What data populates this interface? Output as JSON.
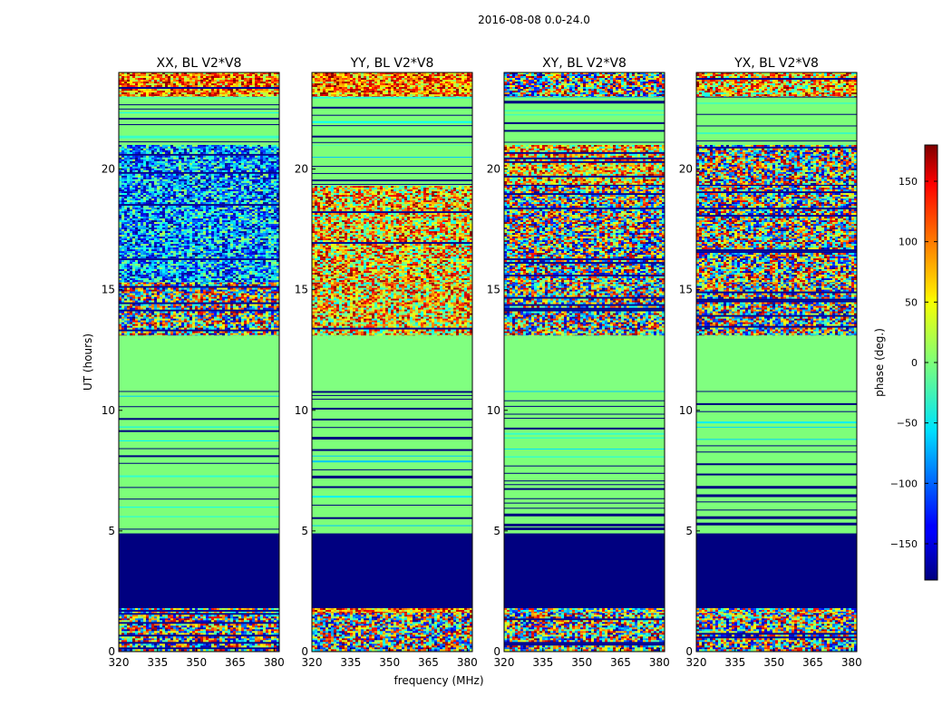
{
  "figure": {
    "suptitle": "2016-08-08 0.0-24.0"
  },
  "colorbar": {
    "label": "phase (deg.)",
    "ticks": [
      150,
      100,
      50,
      0,
      -50,
      -100,
      -150
    ],
    "tick_labels": [
      "150",
      "100",
      "50",
      "0",
      "−50",
      "−100",
      "−150"
    ],
    "range": [
      -180,
      180
    ],
    "colormap": "jet"
  },
  "chart_data": [
    {
      "type": "heatmap",
      "title": "XX, BL V2*V8",
      "xlabel": "",
      "ylabel": "UT (hours)",
      "xlim": [
        320,
        382
      ],
      "ylim": [
        0,
        24
      ],
      "xticks": [
        "320",
        "335",
        "350",
        "365",
        "380"
      ],
      "yticks": [
        "0",
        "5",
        "10",
        "15",
        "20"
      ],
      "bands": [
        {
          "hours": [
            0.0,
            1.6
          ],
          "pattern": "noise"
        },
        {
          "hours": [
            1.6,
            1.8
          ],
          "pattern": "mixed"
        },
        {
          "hours": [
            1.8,
            4.9
          ],
          "value_deg": -180
        },
        {
          "hours": [
            4.9,
            10.8
          ],
          "pattern": "striped-near-zero"
        },
        {
          "hours": [
            10.8,
            13.1
          ],
          "value_deg": 0
        },
        {
          "hours": [
            13.1,
            15.3
          ],
          "pattern": "noise"
        },
        {
          "hours": [
            15.3,
            19.3
          ],
          "pattern": "noise-negative"
        },
        {
          "hours": [
            19.3,
            21.0
          ],
          "pattern": "noise-negative"
        },
        {
          "hours": [
            21.0,
            23.0
          ],
          "pattern": "striped-near-zero"
        },
        {
          "hours": [
            23.0,
            24.0
          ],
          "pattern": "mixed-positive"
        }
      ]
    },
    {
      "type": "heatmap",
      "title": "YY, BL V2*V8",
      "xlabel": "frequency (MHz)",
      "ylabel": "",
      "xlim": [
        320,
        382
      ],
      "ylim": [
        0,
        24
      ],
      "xticks": [
        "320",
        "335",
        "350",
        "365",
        "380"
      ],
      "yticks": [
        "0",
        "5",
        "10",
        "15",
        "20"
      ],
      "bands": [
        {
          "hours": [
            0.0,
            1.6
          ],
          "pattern": "noise"
        },
        {
          "hours": [
            1.6,
            1.8
          ],
          "pattern": "mixed-positive"
        },
        {
          "hours": [
            1.8,
            4.9
          ],
          "value_deg": -180
        },
        {
          "hours": [
            4.9,
            10.8
          ],
          "pattern": "striped-near-zero"
        },
        {
          "hours": [
            10.8,
            13.1
          ],
          "value_deg": 0
        },
        {
          "hours": [
            13.1,
            15.3
          ],
          "pattern": "noise-positive"
        },
        {
          "hours": [
            15.3,
            19.3
          ],
          "pattern": "noise-positive"
        },
        {
          "hours": [
            19.3,
            21.0
          ],
          "pattern": "striped-near-zero"
        },
        {
          "hours": [
            21.0,
            23.0
          ],
          "pattern": "striped-near-zero"
        },
        {
          "hours": [
            23.0,
            24.0
          ],
          "pattern": "mixed-positive"
        }
      ]
    },
    {
      "type": "heatmap",
      "title": "XY, BL V2*V8",
      "xlabel": "",
      "ylabel": "",
      "xlim": [
        320,
        382
      ],
      "ylim": [
        0,
        24
      ],
      "xticks": [
        "320",
        "335",
        "350",
        "365",
        "380"
      ],
      "yticks": [
        "0",
        "5",
        "10",
        "15",
        "20"
      ],
      "bands": [
        {
          "hours": [
            0.0,
            1.6
          ],
          "pattern": "noise"
        },
        {
          "hours": [
            1.6,
            1.8
          ],
          "pattern": "mixed"
        },
        {
          "hours": [
            1.8,
            4.9
          ],
          "value_deg": -180
        },
        {
          "hours": [
            4.9,
            10.8
          ],
          "pattern": "striped-near-zero"
        },
        {
          "hours": [
            10.8,
            13.1
          ],
          "value_deg": 0
        },
        {
          "hours": [
            13.1,
            15.3
          ],
          "pattern": "noise"
        },
        {
          "hours": [
            15.3,
            19.3
          ],
          "pattern": "noise"
        },
        {
          "hours": [
            19.3,
            21.0
          ],
          "pattern": "noise-positive"
        },
        {
          "hours": [
            21.0,
            23.0
          ],
          "pattern": "striped-near-zero"
        },
        {
          "hours": [
            23.0,
            24.0
          ],
          "pattern": "noise"
        }
      ]
    },
    {
      "type": "heatmap",
      "title": "YX, BL V2*V8",
      "xlabel": "",
      "ylabel": "",
      "xlim": [
        320,
        382
      ],
      "ylim": [
        0,
        24
      ],
      "xticks": [
        "320",
        "335",
        "350",
        "365",
        "380"
      ],
      "yticks": [
        "0",
        "5",
        "10",
        "15",
        "20"
      ],
      "bands": [
        {
          "hours": [
            0.0,
            1.6
          ],
          "pattern": "noise"
        },
        {
          "hours": [
            1.6,
            1.8
          ],
          "pattern": "mixed"
        },
        {
          "hours": [
            1.8,
            4.9
          ],
          "value_deg": -180
        },
        {
          "hours": [
            4.9,
            10.8
          ],
          "pattern": "striped-near-zero"
        },
        {
          "hours": [
            10.8,
            13.1
          ],
          "value_deg": 0
        },
        {
          "hours": [
            13.1,
            15.3
          ],
          "pattern": "noise"
        },
        {
          "hours": [
            15.3,
            19.3
          ],
          "pattern": "noise"
        },
        {
          "hours": [
            19.3,
            21.0
          ],
          "pattern": "noise"
        },
        {
          "hours": [
            21.0,
            23.0
          ],
          "pattern": "striped-near-zero"
        },
        {
          "hours": [
            23.0,
            24.0
          ],
          "pattern": "noise-positive"
        }
      ]
    }
  ]
}
